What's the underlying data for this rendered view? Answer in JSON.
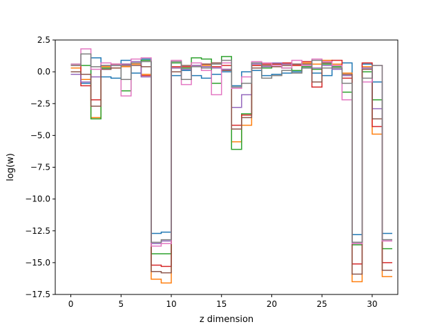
{
  "chart_data": {
    "type": "line",
    "step": "post",
    "title": "",
    "xlabel": "z dimension",
    "ylabel": "log(w)",
    "xlim": [
      -1.55,
      32.55
    ],
    "ylim": [
      -17.5,
      2.5
    ],
    "xticks": [
      0,
      5,
      10,
      15,
      20,
      25,
      30
    ],
    "yticks": [
      2.5,
      0.0,
      -2.5,
      -5.0,
      -7.5,
      -10.0,
      -12.5,
      -15.0,
      -17.5
    ],
    "ytick_labels": [
      "2.5",
      "0.0",
      "−2.5",
      "−5.0",
      "−7.5",
      "−10.0",
      "−12.5",
      "−15.0",
      "−17.5"
    ],
    "grid": false,
    "legend": "none",
    "bin_edges": [
      0,
      1,
      2,
      3,
      4,
      5,
      6,
      7,
      8,
      9,
      10,
      11,
      12,
      13,
      14,
      15,
      16,
      17,
      18,
      19,
      20,
      21,
      22,
      23,
      24,
      25,
      26,
      27,
      28,
      29,
      30,
      31
    ],
    "series": [
      {
        "color": "#1f77b4",
        "values": [
          -0.2,
          -0.9,
          1.1,
          -0.4,
          -0.5,
          0.9,
          -0.1,
          1.0,
          -12.7,
          -12.6,
          -0.3,
          0.1,
          -0.3,
          -0.5,
          -0.2,
          0.0,
          -1.1,
          0.0,
          0.1,
          -0.3,
          -0.2,
          -0.1,
          0.0,
          0.3,
          -0.1,
          -0.3,
          0.4,
          0.7,
          -12.8,
          0.6,
          -0.8,
          -12.7
        ]
      },
      {
        "color": "#ff7f0e",
        "values": [
          0.3,
          -0.6,
          -3.6,
          0.4,
          0.3,
          0.4,
          0.6,
          -0.2,
          -16.3,
          -16.6,
          0.3,
          0.4,
          0.7,
          0.5,
          0.4,
          0.2,
          -5.5,
          -4.2,
          0.5,
          0.4,
          0.7,
          0.6,
          0.5,
          0.7,
          0.6,
          0.9,
          0.6,
          -0.1,
          -16.5,
          0.4,
          -4.9,
          -16.1
        ]
      },
      {
        "color": "#2ca02c",
        "values": [
          0.6,
          0.5,
          -3.7,
          0.3,
          0.6,
          -1.5,
          0.7,
          0.9,
          -14.3,
          -14.3,
          0.7,
          0.3,
          1.1,
          1.0,
          -0.9,
          1.2,
          -6.1,
          -3.3,
          0.7,
          0.3,
          0.6,
          0.3,
          0.1,
          0.4,
          0.2,
          0.6,
          0.4,
          -1.6,
          -13.6,
          0.0,
          -2.2,
          -13.9
        ]
      },
      {
        "color": "#d62728",
        "values": [
          0.5,
          -1.1,
          -2.2,
          0.5,
          0.6,
          0.6,
          0.7,
          -0.3,
          -15.2,
          -15.3,
          0.4,
          0.4,
          0.5,
          0.6,
          0.4,
          0.5,
          -4.2,
          -3.4,
          0.5,
          0.6,
          0.6,
          0.7,
          0.5,
          0.8,
          -1.2,
          0.8,
          0.9,
          -0.5,
          -15.1,
          0.7,
          -4.3,
          -15.0
        ]
      },
      {
        "color": "#9467bd",
        "values": [
          -0.2,
          -0.8,
          -0.4,
          0.2,
          0.5,
          0.6,
          0.8,
          -0.4,
          -13.5,
          -13.3,
          0.3,
          0.2,
          0.5,
          0.4,
          0.3,
          0.2,
          -2.8,
          -1.8,
          0.6,
          0.4,
          0.7,
          0.6,
          0.6,
          0.5,
          0.3,
          0.5,
          0.2,
          -0.3,
          -13.4,
          0.3,
          -2.9,
          -13.2
        ]
      },
      {
        "color": "#8c564b",
        "values": [
          0.0,
          -0.2,
          -2.7,
          0.2,
          0.3,
          0.5,
          0.5,
          0.4,
          -15.7,
          -15.8,
          0.0,
          0.5,
          0.4,
          0.6,
          0.7,
          0.1,
          -4.5,
          -3.6,
          0.3,
          0.5,
          0.4,
          0.5,
          0.6,
          0.6,
          -0.8,
          0.7,
          0.5,
          -0.2,
          -15.9,
          0.2,
          -3.7,
          -15.6
        ]
      },
      {
        "color": "#e377c2",
        "values": [
          0.6,
          1.8,
          0.2,
          0.7,
          0.6,
          -1.9,
          1.0,
          1.1,
          -13.7,
          -13.5,
          0.9,
          -1.0,
          0.7,
          0.1,
          -1.8,
          0.7,
          -1.3,
          -0.4,
          0.8,
          0.7,
          0.5,
          0.3,
          0.9,
          0.5,
          1.0,
          0.8,
          0.5,
          -2.2,
          -13.5,
          -0.8,
          0.5,
          -13.3
        ]
      },
      {
        "color": "#7f7f7f",
        "values": [
          0.5,
          1.4,
          0.4,
          0.5,
          0.5,
          -0.6,
          0.7,
          0.8,
          -13.4,
          -13.2,
          0.8,
          -0.6,
          0.4,
          0.3,
          0.6,
          0.9,
          -1.2,
          -0.9,
          0.7,
          -0.5,
          -0.3,
          0.1,
          -0.1,
          0.3,
          0.9,
          0.3,
          0.3,
          -0.9,
          -13.4,
          -0.5,
          0.5,
          -13.2
        ]
      }
    ]
  }
}
